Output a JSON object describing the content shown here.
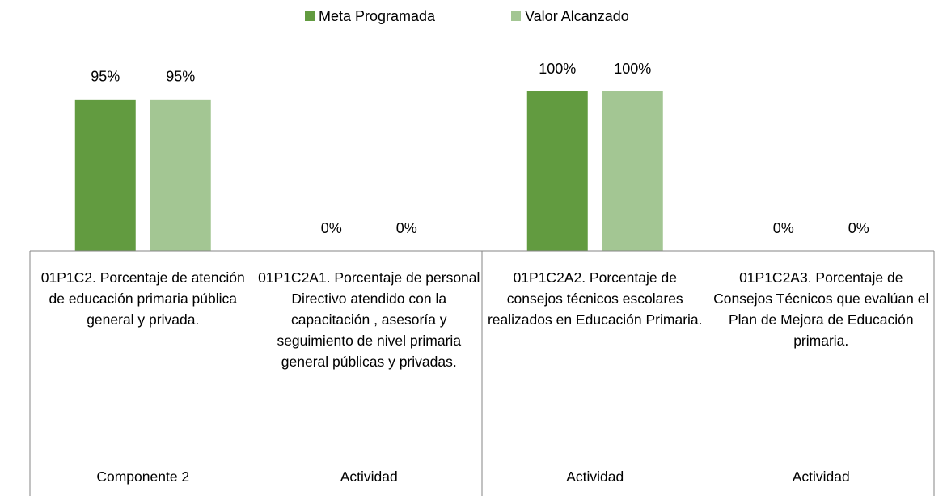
{
  "chart_data": {
    "type": "bar",
    "categories": [
      "01P1C2. Porcentaje  de atención  de educación primaria pública general y privada.",
      "01P1C2A1. Porcentaje de personal Directivo atendido con la capacitación , asesoría y seguimiento de nivel primaria general públicas y privadas.",
      "01P1C2A2. Porcentaje de consejos técnicos escolares realizados en Educación Primaria.",
      "01P1C2A3. Porcentaje de Consejos Técnicos que evalúan el Plan de Mejora de Educación primaria."
    ],
    "category_groups": [
      "Componente 2",
      "Actividad",
      "Actividad",
      "Actividad"
    ],
    "series": [
      {
        "name": "Meta Programada",
        "color": "#629b40",
        "values": [
          95,
          0,
          100,
          0
        ],
        "value_labels": [
          "95%",
          "0%",
          "100%",
          "0%"
        ]
      },
      {
        "name": "Valor Alcanzado",
        "color": "#a3c693",
        "values": [
          95,
          0,
          100,
          0
        ],
        "value_labels": [
          "95%",
          "0%",
          "100%",
          "0%"
        ]
      }
    ],
    "legend": "top"
  }
}
